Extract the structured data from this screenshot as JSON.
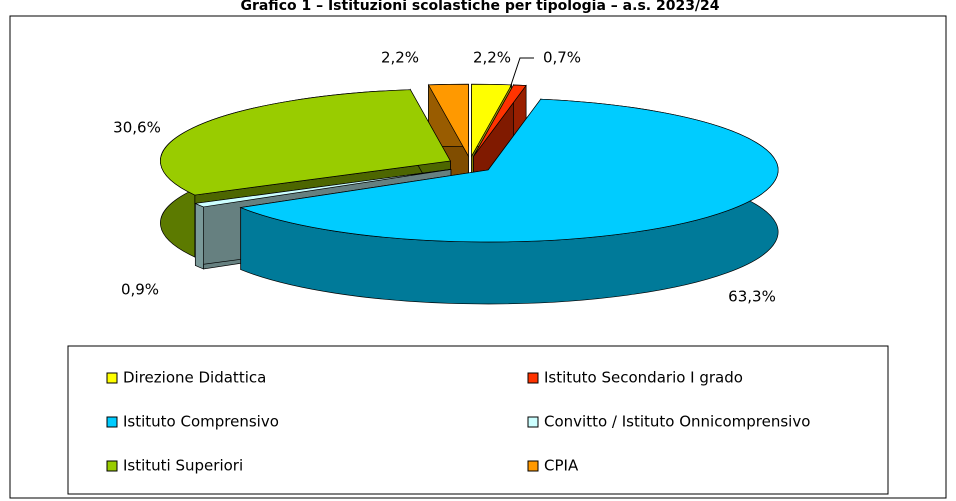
{
  "chart_data": {
    "type": "pie3d",
    "title": "Grafico 1 – Istituzioni scolastiche per tipologia – a.s. 2023/24",
    "categories": [
      "Direzione Didattica",
      "Istituto Secondario I grado",
      "Istituto Comprensivo",
      "Convitto / Istituto Onnicomprensivo",
      "Istituti Superiori",
      "CPIA"
    ],
    "values": [
      2.2,
      0.7,
      63.3,
      0.9,
      30.6,
      2.2
    ],
    "value_labels": [
      "2,2%",
      "0,7%",
      "63,3%",
      "0,9%",
      "30,6%",
      "2,2%"
    ],
    "colors": [
      "#ffff00",
      "#ff3300",
      "#00ccff",
      "#ccffff",
      "#99cc00",
      "#ff9900"
    ]
  }
}
